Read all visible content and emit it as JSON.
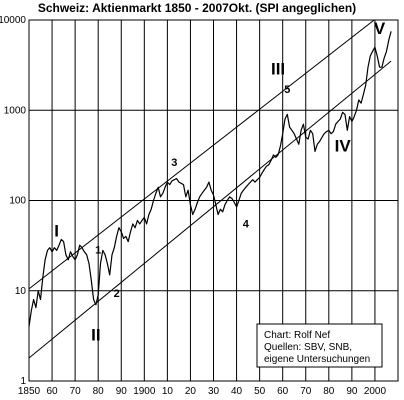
{
  "chart_data": {
    "type": "line",
    "title": "Schweiz: Aktienmarkt 1850 - 2007Okt. (SPI angeglichen)",
    "y_scale": "log",
    "ylim": [
      1,
      10000
    ],
    "xlim": [
      1850,
      2010
    ],
    "grid": true,
    "y_tick_labels": [
      {
        "value": 10000,
        "label": "10000"
      },
      {
        "value": 1000,
        "label": "1000"
      },
      {
        "value": 100,
        "label": "100"
      },
      {
        "value": 10,
        "label": "10"
      },
      {
        "value": 1,
        "label": "1"
      }
    ],
    "x_tick_labels": [
      {
        "value": 1850,
        "label": "1850"
      },
      {
        "value": 1860,
        "label": "60"
      },
      {
        "value": 1870,
        "label": "70"
      },
      {
        "value": 1880,
        "label": "80"
      },
      {
        "value": 1890,
        "label": "90"
      },
      {
        "value": 1900,
        "label": "1900"
      },
      {
        "value": 1910,
        "label": "10"
      },
      {
        "value": 1920,
        "label": "20"
      },
      {
        "value": 1930,
        "label": "30"
      },
      {
        "value": 1940,
        "label": "40"
      },
      {
        "value": 1950,
        "label": "50"
      },
      {
        "value": 1960,
        "label": "60"
      },
      {
        "value": 1970,
        "label": "70"
      },
      {
        "value": 1980,
        "label": "80"
      },
      {
        "value": 1990,
        "label": "90"
      },
      {
        "value": 2000,
        "label": "2000"
      }
    ],
    "series": [
      {
        "color": "#000000",
        "points": [
          [
            1850,
            4
          ],
          [
            1851,
            6
          ],
          [
            1852,
            8
          ],
          [
            1853,
            6.5
          ],
          [
            1854,
            10
          ],
          [
            1855,
            8
          ],
          [
            1856,
            14
          ],
          [
            1857,
            22
          ],
          [
            1858,
            28
          ],
          [
            1859,
            30
          ],
          [
            1860,
            27
          ],
          [
            1861,
            30
          ],
          [
            1862,
            28
          ],
          [
            1863,
            32
          ],
          [
            1864,
            37
          ],
          [
            1865,
            35
          ],
          [
            1866,
            25
          ],
          [
            1867,
            22
          ],
          [
            1868,
            27
          ],
          [
            1869,
            24
          ],
          [
            1870,
            22
          ],
          [
            1871,
            25
          ],
          [
            1872,
            32
          ],
          [
            1873,
            30
          ],
          [
            1874,
            27
          ],
          [
            1875,
            25
          ],
          [
            1876,
            20
          ],
          [
            1877,
            13
          ],
          [
            1878,
            8
          ],
          [
            1879,
            7
          ],
          [
            1880,
            9
          ],
          [
            1881,
            20
          ],
          [
            1882,
            28
          ],
          [
            1883,
            25
          ],
          [
            1884,
            20
          ],
          [
            1885,
            15
          ],
          [
            1886,
            25
          ],
          [
            1887,
            30
          ],
          [
            1888,
            40
          ],
          [
            1889,
            50
          ],
          [
            1890,
            45
          ],
          [
            1891,
            38
          ],
          [
            1892,
            40
          ],
          [
            1893,
            35
          ],
          [
            1894,
            45
          ],
          [
            1895,
            55
          ],
          [
            1896,
            50
          ],
          [
            1897,
            60
          ],
          [
            1898,
            55
          ],
          [
            1899,
            60
          ],
          [
            1900,
            65
          ],
          [
            1901,
            55
          ],
          [
            1902,
            70
          ],
          [
            1903,
            80
          ],
          [
            1904,
            100
          ],
          [
            1905,
            120
          ],
          [
            1906,
            140
          ],
          [
            1907,
            110
          ],
          [
            1908,
            120
          ],
          [
            1909,
            140
          ],
          [
            1910,
            160
          ],
          [
            1911,
            150
          ],
          [
            1912,
            165
          ],
          [
            1913,
            170
          ],
          [
            1914,
            175
          ],
          [
            1915,
            160
          ],
          [
            1916,
            155
          ],
          [
            1917,
            150
          ],
          [
            1918,
            110
          ],
          [
            1919,
            130
          ],
          [
            1920,
            90
          ],
          [
            1921,
            70
          ],
          [
            1922,
            80
          ],
          [
            1923,
            95
          ],
          [
            1924,
            110
          ],
          [
            1925,
            120
          ],
          [
            1926,
            130
          ],
          [
            1927,
            140
          ],
          [
            1928,
            160
          ],
          [
            1929,
            130
          ],
          [
            1930,
            115
          ],
          [
            1931,
            90
          ],
          [
            1932,
            70
          ],
          [
            1933,
            80
          ],
          [
            1934,
            75
          ],
          [
            1935,
            90
          ],
          [
            1936,
            100
          ],
          [
            1937,
            110
          ],
          [
            1938,
            105
          ],
          [
            1939,
            95
          ],
          [
            1940,
            85
          ],
          [
            1941,
            100
          ],
          [
            1942,
            120
          ],
          [
            1943,
            130
          ],
          [
            1944,
            140
          ],
          [
            1945,
            150
          ],
          [
            1946,
            160
          ],
          [
            1947,
            170
          ],
          [
            1948,
            160
          ],
          [
            1949,
            170
          ],
          [
            1950,
            180
          ],
          [
            1951,
            200
          ],
          [
            1952,
            220
          ],
          [
            1953,
            240
          ],
          [
            1954,
            250
          ],
          [
            1955,
            280
          ],
          [
            1956,
            320
          ],
          [
            1957,
            300
          ],
          [
            1958,
            320
          ],
          [
            1959,
            400
          ],
          [
            1960,
            550
          ],
          [
            1961,
            800
          ],
          [
            1962,
            900
          ],
          [
            1963,
            650
          ],
          [
            1964,
            600
          ],
          [
            1965,
            550
          ],
          [
            1966,
            480
          ],
          [
            1967,
            420
          ],
          [
            1968,
            600
          ],
          [
            1969,
            700
          ],
          [
            1970,
            500
          ],
          [
            1971,
            480
          ],
          [
            1972,
            600
          ],
          [
            1973,
            550
          ],
          [
            1974,
            350
          ],
          [
            1975,
            420
          ],
          [
            1976,
            450
          ],
          [
            1977,
            500
          ],
          [
            1978,
            550
          ],
          [
            1979,
            580
          ],
          [
            1980,
            600
          ],
          [
            1981,
            550
          ],
          [
            1982,
            580
          ],
          [
            1983,
            700
          ],
          [
            1984,
            750
          ],
          [
            1985,
            800
          ],
          [
            1986,
            950
          ],
          [
            1987,
            900
          ],
          [
            1988,
            600
          ],
          [
            1989,
            850
          ],
          [
            1990,
            750
          ],
          [
            1991,
            850
          ],
          [
            1992,
            1000
          ],
          [
            1993,
            1300
          ],
          [
            1994,
            1200
          ],
          [
            1995,
            1500
          ],
          [
            1996,
            1900
          ],
          [
            1997,
            3000
          ],
          [
            1998,
            4000
          ],
          [
            1999,
            4500
          ],
          [
            2000,
            5000
          ],
          [
            2001,
            4000
          ],
          [
            2002,
            3000
          ],
          [
            2003,
            3000
          ],
          [
            2004,
            3800
          ],
          [
            2005,
            4500
          ],
          [
            2006,
            6000
          ],
          [
            2007,
            7500
          ]
        ]
      }
    ],
    "channel": {
      "upper": [
        [
          1850,
          10.5
        ],
        [
          2007,
          14000
        ]
      ],
      "lower": [
        [
          1850,
          1.8
        ],
        [
          2007,
          3500
        ]
      ]
    },
    "annotations": [
      {
        "text": "I",
        "x": 1862,
        "y": 40,
        "size": "big"
      },
      {
        "text": "1",
        "x": 1880,
        "y": 26,
        "size": "small"
      },
      {
        "text": "II",
        "x": 1879,
        "y": 2.8,
        "size": "big"
      },
      {
        "text": "2",
        "x": 1888,
        "y": 8.5,
        "size": "small"
      },
      {
        "text": "3",
        "x": 1913,
        "y": 240,
        "size": "small"
      },
      {
        "text": "4",
        "x": 1944,
        "y": 50,
        "size": "small"
      },
      {
        "text": "III",
        "x": 1958,
        "y": 2500,
        "size": "big"
      },
      {
        "text": "5",
        "x": 1962,
        "y": 1550,
        "size": "small"
      },
      {
        "text": "IV",
        "x": 1986,
        "y": 350,
        "size": "big"
      },
      {
        "text": "V",
        "x": 2002,
        "y": 7000,
        "size": "big"
      }
    ],
    "legend_box": {
      "lines": [
        "Chart: Rolf Nef",
        "Quellen: SBV, SNB,",
        "eigene Untersuchungen"
      ],
      "placement": "bottom-right"
    }
  }
}
